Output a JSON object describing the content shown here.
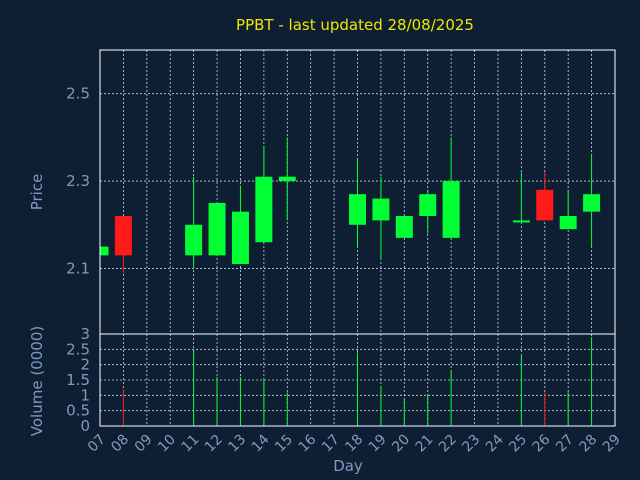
{
  "chart_data": {
    "type": "candlestick",
    "title": "PPBT - last updated 28/08/2025",
    "price_panel": {
      "ylabel": "Price",
      "ylim": [
        1.95,
        2.6
      ],
      "yticks": [
        "2.1",
        "2.3",
        "2.5"
      ]
    },
    "volume_panel": {
      "ylabel": "Volume (0000)",
      "ylim": [
        0,
        3
      ],
      "yticks": [
        "0",
        "0.5",
        "1",
        "1.5",
        "2",
        "2.5",
        "3"
      ]
    },
    "xlabel": "Day",
    "x_ticks": [
      "07",
      "08",
      "09",
      "10",
      "11",
      "12",
      "13",
      "14",
      "15",
      "16",
      "17",
      "18",
      "19",
      "20",
      "21",
      "22",
      "23",
      "24",
      "25",
      "26",
      "27",
      "28",
      "29"
    ],
    "colors": {
      "up": "#00ff33",
      "down": "#ff1a1a",
      "background": "#0f1f33",
      "title": "#f2e600",
      "axis_text": "#7d9bc0"
    },
    "candles": [
      {
        "day": "07",
        "open": 2.13,
        "close": 2.15,
        "high": 2.15,
        "low": 2.13,
        "volume": 0.0
      },
      {
        "day": "08",
        "open": 2.22,
        "close": 2.13,
        "high": 2.22,
        "low": 2.09,
        "volume": 1.2
      },
      {
        "day": "11",
        "open": 2.13,
        "close": 2.2,
        "high": 2.31,
        "low": 2.1,
        "volume": 2.5
      },
      {
        "day": "12",
        "open": 2.13,
        "close": 2.25,
        "high": 2.25,
        "low": 2.13,
        "volume": 1.6
      },
      {
        "day": "13",
        "open": 2.11,
        "close": 2.23,
        "high": 2.29,
        "low": 2.11,
        "volume": 1.6
      },
      {
        "day": "14",
        "open": 2.16,
        "close": 2.31,
        "high": 2.38,
        "low": 2.16,
        "volume": 1.5
      },
      {
        "day": "15",
        "open": 2.3,
        "close": 2.31,
        "high": 2.4,
        "low": 2.21,
        "volume": 1.1
      },
      {
        "day": "18",
        "open": 2.2,
        "close": 2.27,
        "high": 2.35,
        "low": 2.15,
        "volume": 2.4
      },
      {
        "day": "19",
        "open": 2.21,
        "close": 2.26,
        "high": 2.31,
        "low": 2.12,
        "volume": 1.3
      },
      {
        "day": "20",
        "open": 2.17,
        "close": 2.22,
        "high": 2.22,
        "low": 2.17,
        "volume": 0.9
      },
      {
        "day": "21",
        "open": 2.22,
        "close": 2.27,
        "high": 2.28,
        "low": 2.18,
        "volume": 1.0
      },
      {
        "day": "22",
        "open": 2.17,
        "close": 2.3,
        "high": 2.4,
        "low": 2.17,
        "volume": 1.8
      },
      {
        "day": "25",
        "open": 2.21,
        "close": 2.21,
        "high": 2.32,
        "low": 2.21,
        "volume": 2.3
      },
      {
        "day": "26",
        "open": 2.28,
        "close": 2.21,
        "high": 2.32,
        "low": 2.21,
        "volume": 1.1
      },
      {
        "day": "27",
        "open": 2.19,
        "close": 2.22,
        "high": 2.28,
        "low": 2.19,
        "volume": 1.1
      },
      {
        "day": "28",
        "open": 2.23,
        "close": 2.27,
        "high": 2.36,
        "low": 2.15,
        "volume": 2.9
      }
    ]
  }
}
